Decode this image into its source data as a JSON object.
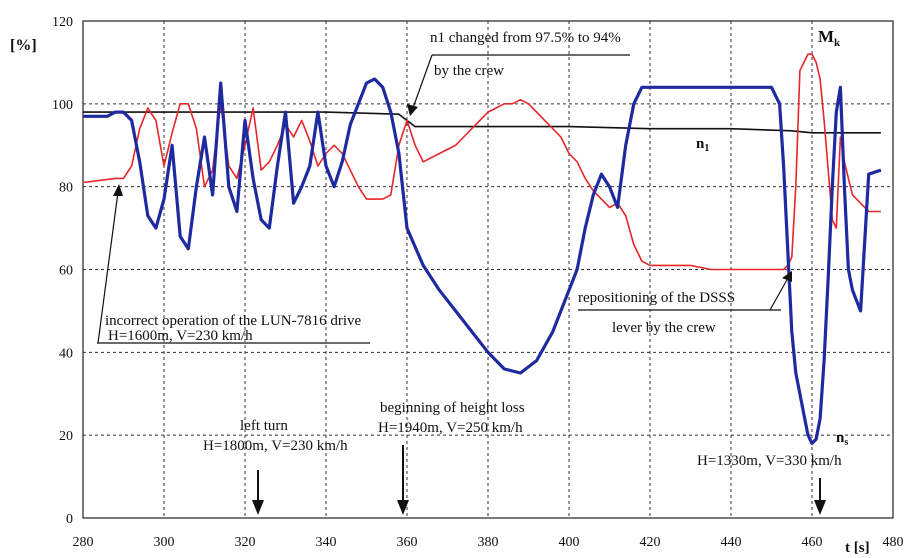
{
  "chart_data": {
    "type": "line",
    "xlabel": "t [s]",
    "ylabel": "[%]",
    "xlim": [
      280,
      480
    ],
    "ylim": [
      0,
      120
    ],
    "x_ticks": [
      "280",
      "300",
      "320",
      "340",
      "360",
      "380",
      "400",
      "420",
      "440",
      "460",
      "480"
    ],
    "y_ticks": [
      "0",
      "20",
      "40",
      "60",
      "80",
      "100",
      "120"
    ],
    "grid": true,
    "series": [
      {
        "name": "n1",
        "color": "#111111",
        "x": [
          280,
          290,
          300,
          320,
          340,
          358,
          362,
          380,
          400,
          420,
          440,
          455,
          460,
          470,
          477
        ],
        "y": [
          98,
          98,
          98,
          98,
          98,
          97.5,
          94.5,
          94.5,
          94.5,
          94,
          94,
          93.5,
          93,
          93,
          93
        ]
      },
      {
        "name": "Mk",
        "color": "#e8262a",
        "x": [
          280,
          288,
          290,
          292,
          294,
          296,
          298,
          300,
          302,
          304,
          306,
          308,
          310,
          312,
          314,
          316,
          318,
          320,
          322,
          324,
          326,
          328,
          330,
          332,
          334,
          336,
          338,
          340,
          342,
          344,
          346,
          348,
          350,
          352,
          354,
          356,
          358,
          360,
          362,
          364,
          366,
          368,
          370,
          372,
          374,
          376,
          378,
          380,
          382,
          384,
          386,
          388,
          390,
          392,
          394,
          396,
          398,
          400,
          402,
          404,
          406,
          408,
          410,
          412,
          414,
          416,
          418,
          420,
          425,
          430,
          435,
          440,
          445,
          450,
          453,
          454,
          455,
          456,
          457,
          458,
          459,
          460,
          461,
          462,
          463,
          464,
          465,
          466,
          467,
          468,
          469,
          470,
          472,
          474,
          477
        ],
        "y": [
          81,
          82,
          82,
          85,
          94,
          99,
          96,
          85,
          93,
          100,
          100,
          94,
          80,
          84,
          100,
          85,
          82,
          90,
          99,
          84,
          86,
          90,
          95,
          92,
          96,
          91,
          85,
          88,
          90,
          88,
          84,
          80,
          77,
          77,
          77,
          78,
          90,
          96,
          90,
          86,
          87,
          88,
          89,
          90,
          92,
          94,
          96,
          98,
          99,
          100,
          100,
          101,
          100,
          98,
          96,
          94,
          92,
          88,
          86,
          82,
          79,
          77,
          75,
          76,
          73,
          66,
          62,
          61,
          61,
          61,
          60,
          60,
          60,
          60,
          60,
          61,
          63,
          80,
          108,
          110,
          112,
          112,
          110,
          106,
          96,
          84,
          72,
          70,
          92,
          86,
          82,
          78,
          76,
          74,
          74
        ]
      },
      {
        "name": "ns",
        "color": "#1e2aa0",
        "x": [
          280,
          286,
          288,
          290,
          292,
          294,
          296,
          298,
          300,
          302,
          304,
          306,
          308,
          310,
          312,
          314,
          316,
          318,
          320,
          322,
          324,
          326,
          328,
          330,
          332,
          334,
          336,
          338,
          340,
          342,
          344,
          346,
          348,
          350,
          352,
          354,
          356,
          358,
          360,
          364,
          368,
          372,
          376,
          380,
          384,
          388,
          392,
          396,
          400,
          402,
          404,
          406,
          408,
          410,
          412,
          414,
          416,
          418,
          420,
          430,
          440,
          450,
          452,
          453,
          454,
          455,
          456,
          457,
          458,
          459,
          460,
          461,
          462,
          463,
          464,
          465,
          466,
          467,
          468,
          469,
          470,
          472,
          474,
          477
        ],
        "y": [
          97,
          97,
          98,
          98,
          96,
          86,
          73,
          70,
          77,
          90,
          68,
          65,
          80,
          92,
          78,
          105,
          80,
          74,
          96,
          82,
          72,
          70,
          85,
          98,
          76,
          80,
          85,
          98,
          85,
          80,
          86,
          95,
          100,
          105,
          106,
          104,
          98,
          88,
          70,
          61,
          55,
          50,
          45,
          40,
          36,
          35,
          38,
          45,
          55,
          60,
          70,
          78,
          83,
          80,
          75,
          90,
          100,
          104,
          104,
          104,
          104,
          104,
          100,
          85,
          65,
          45,
          35,
          30,
          25,
          20,
          18,
          19,
          24,
          38,
          58,
          80,
          98,
          104,
          80,
          60,
          55,
          50,
          83,
          84
        ]
      }
    ],
    "annotations": [
      "n1 changed from 97.5% to 94%",
      "by the crew",
      "incorrect operation of the LUN-7816 drive",
      "H=1600m, V=230 km/h",
      "repositioning of the DSSS",
      "lever by the crew",
      "beginning of height loss",
      "H=1940m, V=250 km/h",
      "left turn",
      "H=1800m, V=230 km/h",
      "H=1330m, V=330 km/h"
    ],
    "series_labels": {
      "mk_main": "M",
      "mk_sub": "k",
      "n1_main": "n",
      "n1_sub": "1",
      "ns_main": "n",
      "ns_sub": "s"
    }
  }
}
